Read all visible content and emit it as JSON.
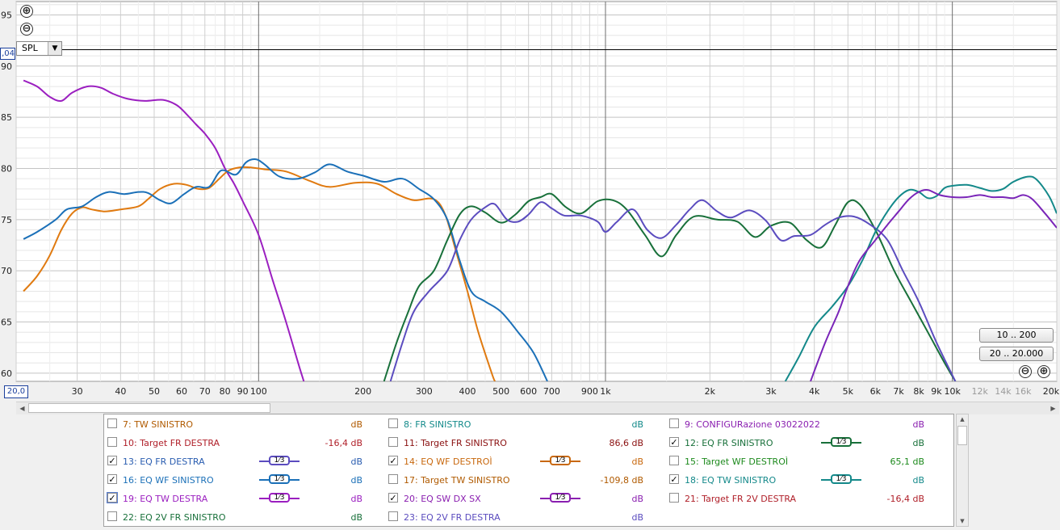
{
  "chart_data": {
    "type": "line",
    "x_scale": "log",
    "xlim": [
      20,
      20000
    ],
    "ylim": [
      59.2,
      96.3
    ],
    "y_ticks": [
      60,
      65,
      70,
      75,
      80,
      85,
      90,
      95
    ],
    "y_tick_labels": [
      "60",
      "65",
      "70",
      "75",
      "80",
      "85",
      "90",
      "95"
    ],
    "x_ticks": [
      {
        "v": 30,
        "label": "30"
      },
      {
        "v": 40,
        "label": "40"
      },
      {
        "v": 50,
        "label": "50"
      },
      {
        "v": 60,
        "label": "60"
      },
      {
        "v": 70,
        "label": "70"
      },
      {
        "v": 80,
        "label": "80"
      },
      {
        "v": 90,
        "label": "90"
      },
      {
        "v": 100,
        "label": "100"
      },
      {
        "v": 200,
        "label": "200"
      },
      {
        "v": 300,
        "label": "300"
      },
      {
        "v": 400,
        "label": "400"
      },
      {
        "v": 500,
        "label": "500"
      },
      {
        "v": 600,
        "label": "600"
      },
      {
        "v": 700,
        "label": "700"
      },
      {
        "v": 900,
        "label": "900"
      },
      {
        "v": 1000,
        "label": "1k"
      },
      {
        "v": 2000,
        "label": "2k"
      },
      {
        "v": 3000,
        "label": "3k"
      },
      {
        "v": 4000,
        "label": "4k"
      },
      {
        "v": 5000,
        "label": "5k"
      },
      {
        "v": 6000,
        "label": "6k"
      },
      {
        "v": 7000,
        "label": "7k"
      },
      {
        "v": 8000,
        "label": "8k"
      },
      {
        "v": 9000,
        "label": "9k"
      },
      {
        "v": 10000,
        "label": "10k"
      },
      {
        "v": 12000,
        "label": "12k",
        "faded": true
      },
      {
        "v": 14000,
        "label": "14k",
        "faded": true
      },
      {
        "v": 16000,
        "label": "16k",
        "faded": true
      },
      {
        "v": 20000,
        "label": "20kHz"
      }
    ],
    "x_start_label": "20,0",
    "cursor_value_label": ",04",
    "cursor_y": 91.6,
    "series": [
      {
        "name": "19: EQ TW DESTRA",
        "color": "#9b1fc0",
        "points": [
          [
            21,
            88.6
          ],
          [
            23,
            88.0
          ],
          [
            25,
            87.0
          ],
          [
            27,
            86.6
          ],
          [
            29,
            87.4
          ],
          [
            32,
            88.0
          ],
          [
            35,
            87.9
          ],
          [
            38,
            87.3
          ],
          [
            42,
            86.8
          ],
          [
            47,
            86.6
          ],
          [
            53,
            86.7
          ],
          [
            58,
            86.2
          ],
          [
            62,
            85.3
          ],
          [
            66,
            84.3
          ],
          [
            70,
            83.4
          ],
          [
            75,
            82.0
          ],
          [
            80,
            80.0
          ],
          [
            85,
            78.5
          ],
          [
            90,
            76.8
          ],
          [
            100,
            73.5
          ],
          [
            110,
            69.0
          ],
          [
            120,
            65.0
          ],
          [
            130,
            61.0
          ],
          [
            135,
            59.2
          ]
        ]
      },
      {
        "name": "14: EQ WF DESTROÌ",
        "color": "#e07a10",
        "points": [
          [
            21,
            68.0
          ],
          [
            23,
            69.5
          ],
          [
            25,
            71.5
          ],
          [
            27,
            74.0
          ],
          [
            29,
            75.6
          ],
          [
            31,
            76.2
          ],
          [
            33,
            76.0
          ],
          [
            36,
            75.8
          ],
          [
            40,
            76.0
          ],
          [
            45,
            76.3
          ],
          [
            48,
            77.0
          ],
          [
            52,
            78.0
          ],
          [
            57,
            78.5
          ],
          [
            62,
            78.4
          ],
          [
            67,
            78.0
          ],
          [
            72,
            78.1
          ],
          [
            77,
            79.0
          ],
          [
            82,
            79.8
          ],
          [
            88,
            80.1
          ],
          [
            95,
            80.1
          ],
          [
            105,
            79.9
          ],
          [
            120,
            79.7
          ],
          [
            140,
            78.8
          ],
          [
            160,
            78.2
          ],
          [
            190,
            78.6
          ],
          [
            220,
            78.5
          ],
          [
            250,
            77.5
          ],
          [
            280,
            76.9
          ],
          [
            320,
            77.0
          ],
          [
            345,
            75.5
          ],
          [
            370,
            72.0
          ],
          [
            400,
            68.0
          ],
          [
            430,
            64.0
          ],
          [
            470,
            60.0
          ],
          [
            480,
            59.2
          ]
        ]
      },
      {
        "name": "13: EQ FR DESTRA",
        "color": "#1b70b8",
        "points": [
          [
            21,
            73.1
          ],
          [
            23,
            73.8
          ],
          [
            26,
            75.0
          ],
          [
            28,
            76.0
          ],
          [
            31,
            76.3
          ],
          [
            34,
            77.2
          ],
          [
            37,
            77.7
          ],
          [
            41,
            77.5
          ],
          [
            45,
            77.7
          ],
          [
            48,
            77.6
          ],
          [
            52,
            76.9
          ],
          [
            56,
            76.6
          ],
          [
            61,
            77.5
          ],
          [
            66,
            78.2
          ],
          [
            72,
            78.2
          ],
          [
            78,
            79.8
          ],
          [
            86,
            79.4
          ],
          [
            92,
            80.6
          ],
          [
            98,
            80.9
          ],
          [
            104,
            80.4
          ],
          [
            115,
            79.2
          ],
          [
            130,
            79.0
          ],
          [
            145,
            79.6
          ],
          [
            160,
            80.4
          ],
          [
            180,
            79.7
          ],
          [
            200,
            79.3
          ],
          [
            230,
            78.7
          ],
          [
            260,
            79.0
          ],
          [
            290,
            78.0
          ],
          [
            320,
            77.0
          ],
          [
            350,
            75.0
          ],
          [
            380,
            71.0
          ],
          [
            410,
            68.0
          ],
          [
            450,
            67.0
          ],
          [
            500,
            66.0
          ],
          [
            560,
            64.0
          ],
          [
            620,
            62.0
          ],
          [
            680,
            59.2
          ]
        ]
      },
      {
        "name": "12: EQ FR SINISTRO",
        "color": "#18703a",
        "points": [
          [
            230,
            59.2
          ],
          [
            250,
            63.0
          ],
          [
            270,
            66.0
          ],
          [
            290,
            68.5
          ],
          [
            320,
            70.0
          ],
          [
            350,
            73.0
          ],
          [
            380,
            75.5
          ],
          [
            410,
            76.3
          ],
          [
            450,
            75.7
          ],
          [
            500,
            74.7
          ],
          [
            550,
            75.5
          ],
          [
            600,
            76.8
          ],
          [
            650,
            77.2
          ],
          [
            700,
            77.5
          ],
          [
            770,
            76.2
          ],
          [
            850,
            75.6
          ],
          [
            950,
            76.8
          ],
          [
            1050,
            76.9
          ],
          [
            1150,
            76.0
          ],
          [
            1300,
            73.5
          ],
          [
            1450,
            71.4
          ],
          [
            1600,
            73.5
          ],
          [
            1800,
            75.3
          ],
          [
            2100,
            75.0
          ],
          [
            2400,
            74.8
          ],
          [
            2700,
            73.3
          ],
          [
            3000,
            74.4
          ],
          [
            3400,
            74.7
          ],
          [
            3800,
            73.0
          ],
          [
            4200,
            72.3
          ],
          [
            4600,
            74.5
          ],
          [
            5000,
            76.7
          ],
          [
            5400,
            76.5
          ],
          [
            6000,
            74.0
          ],
          [
            6800,
            70.0
          ],
          [
            7600,
            67.0
          ],
          [
            8500,
            64.0
          ],
          [
            9500,
            61.0
          ],
          [
            10200,
            59.2
          ]
        ]
      },
      {
        "name": "20: EQ SW DX SX",
        "color": "#5b4cbf",
        "points": [
          [
            240,
            59.2
          ],
          [
            260,
            63.0
          ],
          [
            280,
            66.0
          ],
          [
            310,
            68.0
          ],
          [
            350,
            70.0
          ],
          [
            380,
            73.0
          ],
          [
            410,
            75.0
          ],
          [
            450,
            76.2
          ],
          [
            480,
            76.5
          ],
          [
            520,
            75.0
          ],
          [
            560,
            74.8
          ],
          [
            600,
            75.5
          ],
          [
            650,
            76.7
          ],
          [
            700,
            76.1
          ],
          [
            760,
            75.4
          ],
          [
            850,
            75.4
          ],
          [
            950,
            74.8
          ],
          [
            1000,
            73.8
          ],
          [
            1080,
            74.8
          ],
          [
            1200,
            76.0
          ],
          [
            1320,
            74.0
          ],
          [
            1450,
            73.2
          ],
          [
            1600,
            74.5
          ],
          [
            1750,
            76.0
          ],
          [
            1900,
            76.9
          ],
          [
            2100,
            75.8
          ],
          [
            2300,
            75.2
          ],
          [
            2600,
            75.9
          ],
          [
            2900,
            74.9
          ],
          [
            3200,
            73.0
          ],
          [
            3500,
            73.4
          ],
          [
            3900,
            73.5
          ],
          [
            4300,
            74.5
          ],
          [
            4700,
            75.2
          ],
          [
            5200,
            75.3
          ],
          [
            5800,
            74.5
          ],
          [
            6500,
            73.0
          ],
          [
            7200,
            70.0
          ],
          [
            8000,
            67.0
          ],
          [
            9000,
            63.0
          ],
          [
            10200,
            59.2
          ]
        ]
      },
      {
        "name": "18: EQ TW SINISTRO",
        "color": "#14898a",
        "points": [
          [
            3300,
            59.2
          ],
          [
            3600,
            61.5
          ],
          [
            4000,
            64.5
          ],
          [
            4500,
            66.5
          ],
          [
            5000,
            68.5
          ],
          [
            5500,
            71.0
          ],
          [
            6000,
            73.8
          ],
          [
            6500,
            75.8
          ],
          [
            7000,
            77.2
          ],
          [
            7500,
            77.9
          ],
          [
            8000,
            77.7
          ],
          [
            8500,
            77.1
          ],
          [
            9000,
            77.3
          ],
          [
            9500,
            78.1
          ],
          [
            10000,
            78.3
          ],
          [
            11000,
            78.4
          ],
          [
            12000,
            78.1
          ],
          [
            13000,
            77.8
          ],
          [
            14000,
            78.0
          ],
          [
            15000,
            78.7
          ],
          [
            16500,
            79.2
          ],
          [
            17500,
            78.9
          ],
          [
            19000,
            77.3
          ],
          [
            20000,
            75.6
          ]
        ]
      },
      {
        "name": "19: EQ TW DESTRA",
        "color": "#7a25b8",
        "points": [
          [
            3900,
            59.2
          ],
          [
            4300,
            63.0
          ],
          [
            4700,
            66.0
          ],
          [
            5000,
            68.5
          ],
          [
            5400,
            71.0
          ],
          [
            6000,
            73.0
          ],
          [
            6500,
            74.5
          ],
          [
            7000,
            75.8
          ],
          [
            7500,
            77.0
          ],
          [
            8000,
            77.7
          ],
          [
            8500,
            77.9
          ],
          [
            9200,
            77.4
          ],
          [
            10000,
            77.2
          ],
          [
            11000,
            77.2
          ],
          [
            12000,
            77.4
          ],
          [
            13000,
            77.2
          ],
          [
            14000,
            77.2
          ],
          [
            15000,
            77.1
          ],
          [
            16000,
            77.4
          ],
          [
            17000,
            77.0
          ],
          [
            18500,
            75.6
          ],
          [
            20000,
            74.2
          ]
        ]
      }
    ]
  },
  "controls": {
    "spl_label": "SPL",
    "zoom_in_symbol": "⊕",
    "zoom_out_symbol": "⊖",
    "range_btn_1": "10 .. 200",
    "range_btn_2": "20 .. 20.000",
    "checkmark": "✓"
  },
  "legend": [
    {
      "text": "7: TW SINISTRO",
      "color": "#b05a00",
      "checked": false,
      "value": "dB",
      "third": false
    },
    {
      "text": "8: FR SINISTRO",
      "color": "#138a8a",
      "checked": false,
      "value": "dB",
      "third": false
    },
    {
      "text": "9: CONFIGURazione 03022022",
      "color": "#8a1fb0",
      "checked": false,
      "value": "dB",
      "third": false
    },
    {
      "text": "10: Target FR DESTRA",
      "color": "#b0202a",
      "checked": false,
      "value": "-16,4 dB",
      "third": false
    },
    {
      "text": "11: Target FR SINISTRO",
      "color": "#8a1010",
      "checked": false,
      "value": "86,6 dB",
      "third": false
    },
    {
      "text": "12: EQ FR SINISTRO",
      "color": "#18703a",
      "checked": true,
      "value": "dB",
      "third": true,
      "third_label": "1⁄3"
    },
    {
      "text": "13: EQ FR DESTRA",
      "color": "#2a5db0",
      "checked": true,
      "value": "dB",
      "third": true,
      "third_label": "1⁄3",
      "third_color": "#5b4cbf"
    },
    {
      "text": "14: EQ WF DESTROÌ",
      "color": "#c8680e",
      "checked": true,
      "value": "dB",
      "third": true,
      "third_label": "1⁄3"
    },
    {
      "text": "15: Target WF DESTROÌ",
      "color": "#1d8a1d",
      "checked": false,
      "value": "65,1 dB",
      "third": false
    },
    {
      "text": "16: EQ WF SINISTRO",
      "color": "#1b70b8",
      "checked": true,
      "value": "dB",
      "third": true,
      "third_label": "1⁄3"
    },
    {
      "text": "17: Target TW SINISTRO",
      "color": "#b05a00",
      "checked": false,
      "value": "-109,8 dB",
      "third": false
    },
    {
      "text": "18: EQ TW SINISTRO",
      "color": "#14898a",
      "checked": true,
      "value": "dB",
      "third": true,
      "third_label": "1⁄3"
    },
    {
      "text": "19: EQ TW DESTRA",
      "color": "#9b1fc0",
      "checked": true,
      "value": "dB",
      "third": true,
      "third_label": "1⁄3",
      "focus": true
    },
    {
      "text": "20: EQ SW DX SX",
      "color": "#8a1fb0",
      "checked": true,
      "value": "dB",
      "third": true,
      "third_label": "1⁄3"
    },
    {
      "text": "21: Target FR 2V DESTRA",
      "color": "#b0202a",
      "checked": false,
      "value": "-16,4 dB",
      "third": false
    },
    {
      "text": "22: EQ 2V FR SINISTRO",
      "color": "#18703a",
      "checked": false,
      "value": "dB",
      "third": false
    },
    {
      "text": "23: EQ 2V FR DESTRA",
      "color": "#5b4cbf",
      "checked": false,
      "value": "dB",
      "third": false
    }
  ]
}
